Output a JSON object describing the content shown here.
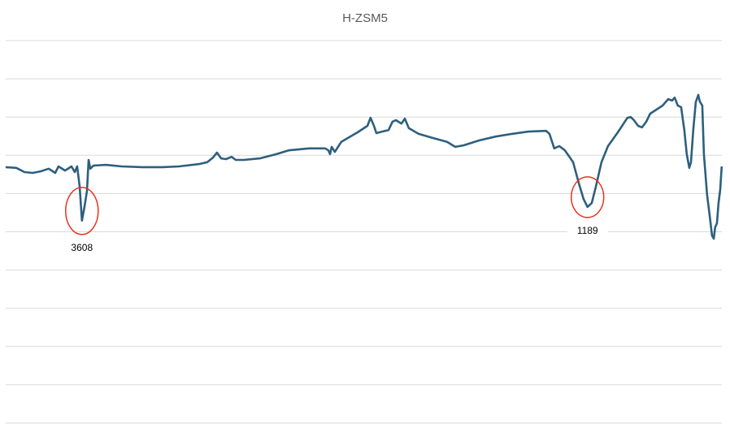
{
  "chart_data": {
    "type": "line",
    "title": "H-ZSM5",
    "xlabel": "",
    "ylabel": "",
    "xlim": [
      4000,
      550
    ],
    "ylim": [
      0,
      10
    ],
    "grid": {
      "horizontal": true,
      "vertical": false,
      "y_lines": 11
    },
    "legend": "none",
    "colors": {
      "line": "#2e5f7e",
      "annotation": "#e8321f",
      "grid": "#d9d9d9",
      "title": "#595959"
    },
    "series": [
      {
        "x": [
          3973,
          3922,
          3883,
          3844,
          3806,
          3767,
          3736,
          3720,
          3689,
          3658,
          3642,
          3631,
          3619,
          3608,
          3596,
          3584,
          3576,
          3568,
          3553,
          3494,
          3417,
          3319,
          3222,
          3144,
          3047,
          3008,
          2981,
          2962,
          2942,
          2919,
          2892,
          2872,
          2833,
          2756,
          2678,
          2619,
          2522,
          2444,
          2429,
          2421,
          2413,
          2398,
          2367,
          2289,
          2242,
          2227,
          2211,
          2199,
          2172,
          2141,
          2122,
          2106,
          2094,
          2079,
          2063,
          2044,
          1997,
          1939,
          1861,
          1822,
          1783,
          1706,
          1628,
          1550,
          1472,
          1387,
          1371,
          1348,
          1324,
          1297,
          1258,
          1231,
          1208,
          1189,
          1169,
          1149,
          1122,
          1091,
          1044,
          998,
          982,
          967,
          947,
          928,
          908,
          889,
          830,
          803,
          784,
          772,
          757,
          741,
          726,
          714,
          702,
          694,
          683,
          671,
          659,
          652,
          640,
          632,
          617,
          605,
          593,
          585,
          578,
          570,
          562,
          554,
          547
        ],
        "y": [
          6.69,
          6.67,
          6.56,
          6.54,
          6.58,
          6.65,
          6.54,
          6.71,
          6.6,
          6.71,
          6.56,
          6.71,
          6.18,
          5.29,
          5.65,
          6.07,
          6.88,
          6.65,
          6.73,
          6.75,
          6.71,
          6.69,
          6.69,
          6.71,
          6.77,
          6.82,
          6.94,
          7.07,
          6.92,
          6.9,
          6.96,
          6.88,
          6.88,
          6.92,
          7.03,
          7.13,
          7.18,
          7.18,
          7.13,
          7.03,
          7.22,
          7.09,
          7.35,
          7.6,
          7.77,
          7.98,
          7.77,
          7.58,
          7.62,
          7.66,
          7.88,
          7.92,
          7.88,
          7.83,
          7.96,
          7.71,
          7.56,
          7.47,
          7.35,
          7.22,
          7.26,
          7.39,
          7.49,
          7.56,
          7.62,
          7.64,
          7.56,
          7.18,
          7.24,
          7.13,
          6.82,
          6.28,
          5.86,
          5.65,
          5.75,
          6.18,
          6.82,
          7.24,
          7.6,
          7.98,
          8.0,
          7.92,
          7.77,
          7.73,
          7.88,
          8.09,
          8.3,
          8.47,
          8.43,
          8.51,
          8.3,
          8.26,
          7.66,
          7.03,
          6.67,
          6.82,
          7.66,
          8.39,
          8.58,
          8.41,
          8.3,
          7.03,
          5.97,
          5.44,
          4.9,
          4.82,
          5.12,
          5.22,
          5.75,
          6.11,
          6.71
        ]
      }
    ],
    "annotations": [
      {
        "label": "3608",
        "x": 3608,
        "y": 5.29
      },
      {
        "label": "1189",
        "x": 1189,
        "y": 5.65
      }
    ]
  }
}
